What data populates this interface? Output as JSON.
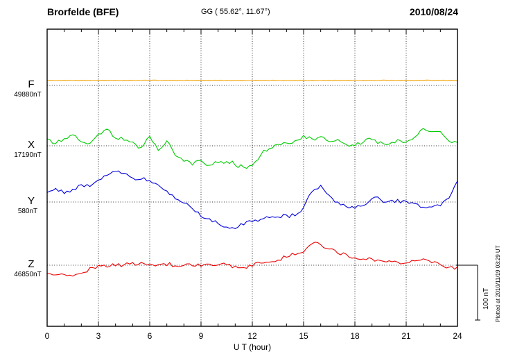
{
  "header": {
    "station": "Brorfelde (BFE)",
    "coords": "GG ( 55.62°,  11.67°)",
    "date": "2010/08/24"
  },
  "xaxis": {
    "label": "U T (hour)",
    "ticks": [
      "0",
      "3",
      "6",
      "9",
      "12",
      "15",
      "18",
      "21",
      "24"
    ]
  },
  "scalebar": {
    "label": "100 nT",
    "nT": 100
  },
  "watermark": "Plotted at 2010/11/19 03:29 UT",
  "chart_data": {
    "type": "line",
    "title": "Magnetogram Brorfelde (BFE) 2010/08/24",
    "xlabel": "U T (hour)",
    "xlim_hours": [
      0,
      24
    ],
    "x_step_hours": 0.5,
    "grid": "dotted-vertical-every-3h",
    "scale_bar_nT": 100,
    "series": [
      {
        "name": "F",
        "label": "F",
        "value_label": "49880nT",
        "color": "#f0a000",
        "offsets_nT": [
          9,
          9,
          9,
          9,
          9,
          9,
          9,
          9,
          9,
          9,
          9,
          9,
          9,
          9,
          9,
          9,
          9,
          9,
          9,
          9,
          9,
          9,
          9,
          9,
          9,
          9,
          9,
          9,
          9,
          9,
          9,
          9,
          9,
          9,
          9,
          9,
          9,
          9,
          9,
          9,
          9,
          9,
          9,
          9,
          9,
          9,
          9,
          9,
          9
        ]
      },
      {
        "name": "X",
        "label": "X",
        "value_label": "17190nT",
        "color": "#00cc00",
        "offsets_nT": [
          13,
          5,
          11,
          18,
          9,
          4,
          20,
          30,
          15,
          10,
          5,
          -3,
          18,
          -8,
          10,
          -18,
          -28,
          -33,
          -25,
          -35,
          -30,
          -28,
          -33,
          -40,
          -35,
          -15,
          -3,
          3,
          6,
          10,
          18,
          11,
          15,
          6,
          11,
          3,
          0,
          8,
          11,
          6,
          3,
          10,
          6,
          15,
          30,
          24,
          26,
          10,
          6
        ]
      },
      {
        "name": "Y",
        "label": "Y",
        "value_label": "580nT",
        "color": "#0000dd",
        "offsets_nT": [
          19,
          25,
          16,
          23,
          31,
          28,
          38,
          50,
          56,
          50,
          44,
          41,
          38,
          31,
          19,
          6,
          0,
          -13,
          -25,
          -31,
          -38,
          -44,
          -48,
          -40,
          -35,
          -31,
          -28,
          -25,
          -25,
          -23,
          -10,
          19,
          31,
          10,
          0,
          -8,
          -10,
          -5,
          8,
          4,
          0,
          3,
          0,
          -3,
          -8,
          -10,
          -5,
          8,
          38
        ]
      },
      {
        "name": "Z",
        "label": "Z",
        "value_label": "46850nT",
        "color": "#ee0000",
        "offsets_nT": [
          -16,
          -19,
          -15,
          -18,
          -13,
          -6,
          -1,
          -3,
          0,
          1,
          3,
          4,
          3,
          0,
          1,
          0,
          -1,
          0,
          -1,
          0,
          1,
          0,
          -3,
          -4,
          0,
          3,
          6,
          10,
          15,
          19,
          25,
          40,
          35,
          30,
          23,
          19,
          15,
          13,
          10,
          8,
          6,
          5,
          4,
          6,
          10,
          4,
          0,
          -4,
          -3
        ]
      }
    ]
  }
}
